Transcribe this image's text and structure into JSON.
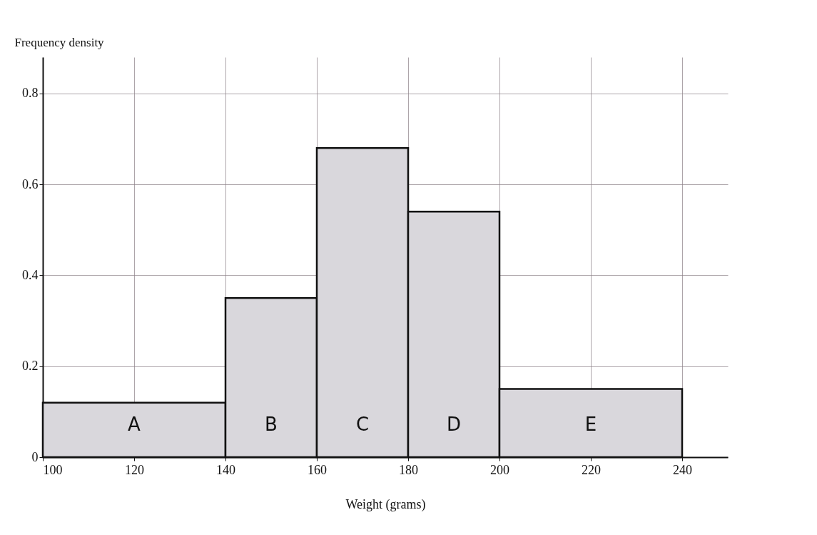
{
  "chart_data": {
    "type": "histogram",
    "xlabel": "Weight (grams)",
    "ylabel": "Frequency density",
    "bins": [
      100,
      140,
      160,
      180,
      200,
      240
    ],
    "values": [
      0.12,
      0.35,
      0.68,
      0.54,
      0.15
    ],
    "color": "#d9d7dc",
    "xlim": [
      100,
      250
    ],
    "xticks": [
      100,
      120,
      140,
      160,
      180,
      200,
      220,
      240
    ],
    "ylim": [
      0,
      0.88
    ],
    "yticks": [
      0,
      0.2,
      0.4,
      0.6,
      0.8
    ],
    "grid": true,
    "annotations": [
      "A",
      "B",
      "C",
      "D",
      "E"
    ]
  }
}
